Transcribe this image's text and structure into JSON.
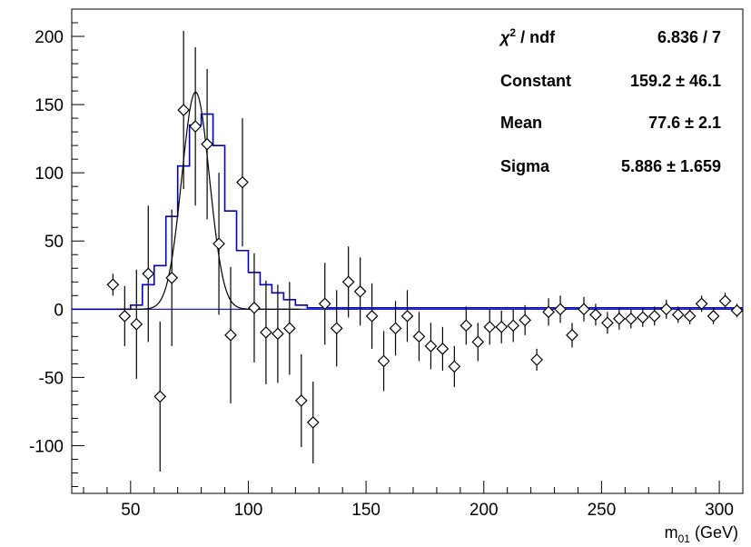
{
  "chart_data": {
    "type": "scatter",
    "xlabel_main": "m",
    "xlabel_sub": "01",
    "xlabel_unit": " (GeV)",
    "xlim": [
      25,
      310
    ],
    "ylim": [
      -135,
      220
    ],
    "xticks": [
      50,
      100,
      150,
      200,
      250,
      300
    ],
    "yticks": [
      200,
      150,
      100,
      50,
      0,
      -50,
      -100
    ],
    "stats": {
      "chi_label": "χ",
      "chi_sup": "2",
      "chi_rest": " / ndf",
      "chi_value": "6.836 / 7",
      "constant_label": "Constant",
      "constant_value": "159.2 ± 46.1",
      "mean_label": "Mean",
      "mean_value": "77.6 ± 2.1",
      "sigma_label": "Sigma",
      "sigma_value": "5.886 ± 1.659"
    },
    "fit": {
      "constant": 159.2,
      "mean": 77.6,
      "sigma": 5.886
    },
    "colors": {
      "histogram": "#0000cc",
      "fit": "#000000",
      "points": "#000000"
    },
    "histogram": {
      "edges": [
        25,
        50,
        55,
        60,
        65,
        70,
        75,
        80,
        85,
        90,
        95,
        100,
        105,
        110,
        115,
        120,
        125,
        310
      ],
      "values": [
        0,
        3,
        18,
        32,
        68,
        105,
        135,
        143,
        120,
        72,
        43,
        27,
        18,
        12,
        7,
        3,
        1
      ]
    },
    "points": [
      {
        "x": 42.5,
        "y": 18,
        "err": 8
      },
      {
        "x": 47.5,
        "y": -5,
        "err": 22
      },
      {
        "x": 52.5,
        "y": -11,
        "err": 40
      },
      {
        "x": 57.5,
        "y": 26,
        "err": 50
      },
      {
        "x": 62.5,
        "y": -64,
        "err": 55
      },
      {
        "x": 67.5,
        "y": 23,
        "err": 50
      },
      {
        "x": 72.5,
        "y": 146,
        "err": 58
      },
      {
        "x": 77.5,
        "y": 134,
        "err": 58
      },
      {
        "x": 82.5,
        "y": 121,
        "err": 55
      },
      {
        "x": 87.5,
        "y": 48,
        "err": 52
      },
      {
        "x": 92.5,
        "y": -19,
        "err": 50
      },
      {
        "x": 97.5,
        "y": 93,
        "err": 47
      },
      {
        "x": 102.5,
        "y": 1,
        "err": 40
      },
      {
        "x": 107.5,
        "y": -17,
        "err": 38
      },
      {
        "x": 112.5,
        "y": -18,
        "err": 36
      },
      {
        "x": 117.5,
        "y": -14,
        "err": 34
      },
      {
        "x": 122.5,
        "y": -67,
        "err": 34
      },
      {
        "x": 127.5,
        "y": -83,
        "err": 30
      },
      {
        "x": 132.5,
        "y": 4,
        "err": 30
      },
      {
        "x": 137.5,
        "y": -14,
        "err": 28
      },
      {
        "x": 142.5,
        "y": 20,
        "err": 26
      },
      {
        "x": 147.5,
        "y": 13,
        "err": 25
      },
      {
        "x": 152.5,
        "y": -5,
        "err": 24
      },
      {
        "x": 157.5,
        "y": -38,
        "err": 22
      },
      {
        "x": 162.5,
        "y": -14,
        "err": 20
      },
      {
        "x": 167.5,
        "y": -5,
        "err": 19
      },
      {
        "x": 172.5,
        "y": -20,
        "err": 18
      },
      {
        "x": 177.5,
        "y": -27,
        "err": 17
      },
      {
        "x": 182.5,
        "y": -29,
        "err": 16
      },
      {
        "x": 187.5,
        "y": -42,
        "err": 15
      },
      {
        "x": 192.5,
        "y": -12,
        "err": 14
      },
      {
        "x": 197.5,
        "y": -24,
        "err": 14
      },
      {
        "x": 202.5,
        "y": -13,
        "err": 13
      },
      {
        "x": 207.5,
        "y": -13,
        "err": 12
      },
      {
        "x": 212.5,
        "y": -12,
        "err": 12
      },
      {
        "x": 217.5,
        "y": -8,
        "err": 11
      },
      {
        "x": 222.5,
        "y": -37,
        "err": 8
      },
      {
        "x": 227.5,
        "y": -2,
        "err": 10
      },
      {
        "x": 232.5,
        "y": 0,
        "err": 10
      },
      {
        "x": 237.5,
        "y": -19,
        "err": 9
      },
      {
        "x": 242.5,
        "y": 0,
        "err": 9
      },
      {
        "x": 247.5,
        "y": -4,
        "err": 8
      },
      {
        "x": 252.5,
        "y": -10,
        "err": 8
      },
      {
        "x": 257.5,
        "y": -7,
        "err": 8
      },
      {
        "x": 262.5,
        "y": -7,
        "err": 7
      },
      {
        "x": 267.5,
        "y": -6,
        "err": 7
      },
      {
        "x": 272.5,
        "y": -5,
        "err": 7
      },
      {
        "x": 277.5,
        "y": 0,
        "err": 7
      },
      {
        "x": 282.5,
        "y": -4,
        "err": 6
      },
      {
        "x": 287.5,
        "y": -5,
        "err": 6
      },
      {
        "x": 292.5,
        "y": 4,
        "err": 6
      },
      {
        "x": 297.5,
        "y": -5,
        "err": 6
      },
      {
        "x": 302.5,
        "y": 6,
        "err": 6
      },
      {
        "x": 307.5,
        "y": -1,
        "err": 5
      }
    ]
  }
}
